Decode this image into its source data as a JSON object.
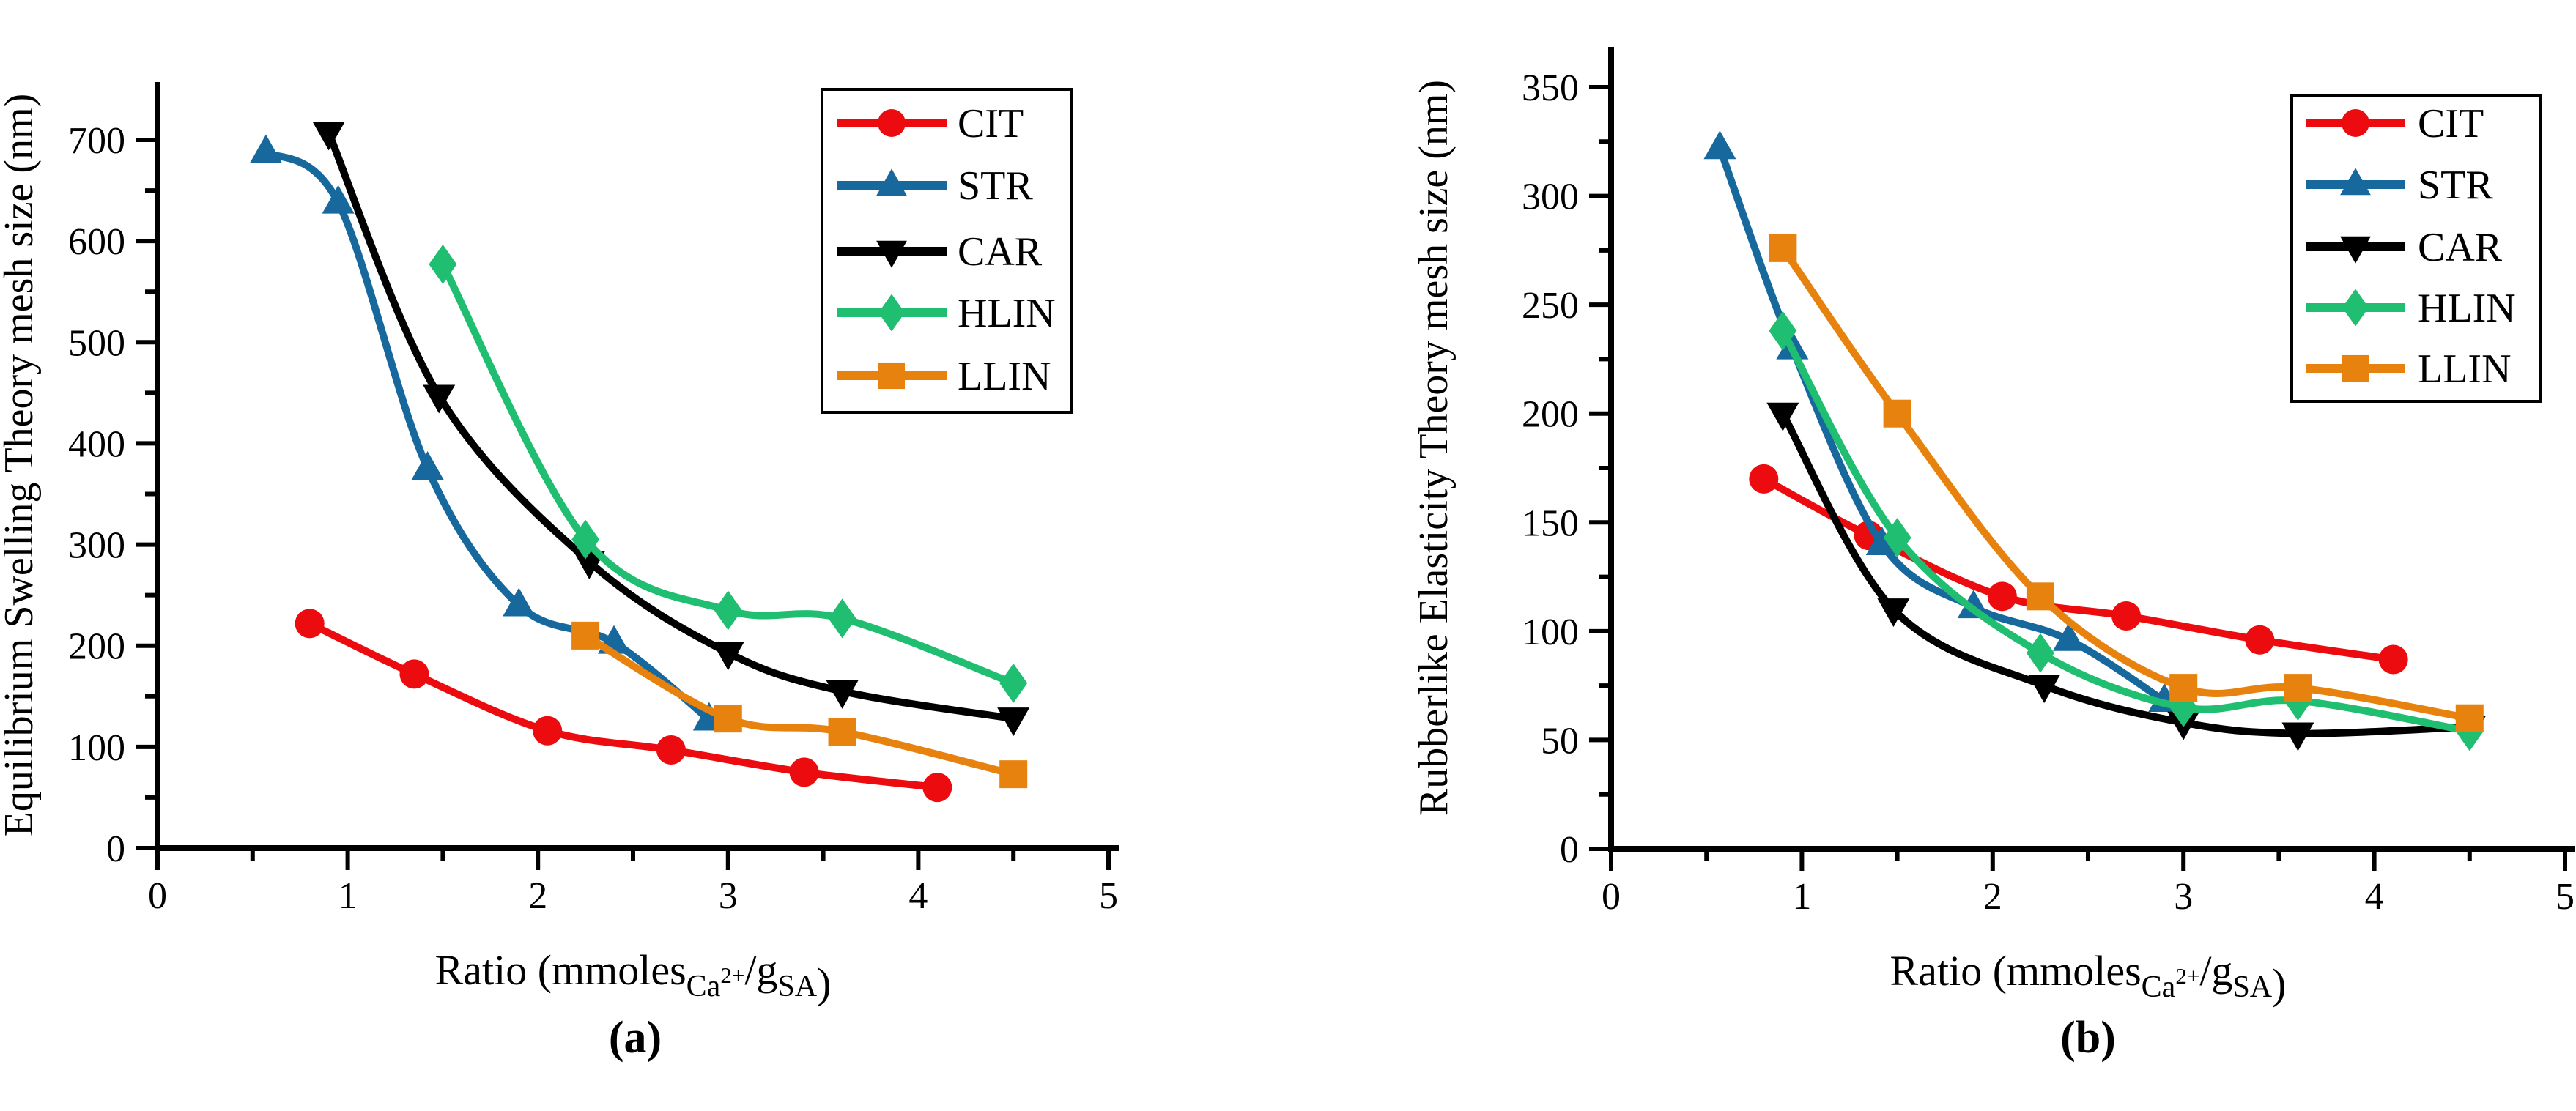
{
  "figure": {
    "caption_a": "(a)",
    "caption_b": "(b)",
    "background": "#ffffff",
    "axis_color": "#000000"
  },
  "chart_data": [
    {
      "type": "line",
      "panel": "a",
      "caption": "(a)",
      "title": "",
      "ylabel": "Equilibrium Swelling Theory mesh size (nm)",
      "xlabel": "Ratio (mmoles_Ca2+/g_SA)",
      "xlabel_rich": [
        [
          "Ratio (mmoles",
          "n"
        ],
        [
          "Ca",
          "sub"
        ],
        [
          "2+",
          "supsub"
        ],
        [
          "/g",
          "n"
        ],
        [
          "SA",
          "sub"
        ],
        [
          ")",
          "n"
        ]
      ],
      "xlim": [
        0,
        5
      ],
      "ylim": [
        0,
        700
      ],
      "x_ticks": [
        0,
        1,
        2,
        3,
        4,
        5
      ],
      "y_ticks": [
        0,
        100,
        200,
        300,
        400,
        500,
        600,
        700
      ],
      "x_major": 1,
      "x_minor": 0.5,
      "y_major": 100,
      "y_minor": 50,
      "grid": false,
      "legend_position": "top-right-inside",
      "series": [
        {
          "name": "CIT",
          "color": "#EC0B0E",
          "marker": "circle",
          "x": [
            0.8,
            1.35,
            2.05,
            2.7,
            3.4,
            4.1
          ],
          "y": [
            222,
            172,
            116,
            97,
            75,
            60
          ]
        },
        {
          "name": "STR",
          "color": "#17689D",
          "marker": "triangle-up",
          "x": [
            0.57,
            0.95,
            1.42,
            1.9,
            2.4,
            2.9
          ],
          "y": [
            688,
            638,
            375,
            240,
            203,
            127
          ]
        },
        {
          "name": "CAR",
          "color": "#000000",
          "marker": "triangle-down",
          "x": [
            0.9,
            1.48,
            2.27,
            3.0,
            3.6,
            4.5
          ],
          "y": [
            707,
            447,
            283,
            193,
            155,
            128
          ]
        },
        {
          "name": "HLIN",
          "color": "#1FBE71",
          "marker": "diamond",
          "x": [
            1.5,
            2.25,
            3.0,
            3.6,
            4.5
          ],
          "y": [
            577,
            305,
            235,
            227,
            163
          ]
        },
        {
          "name": "LLIN",
          "color": "#E8820E",
          "marker": "square",
          "x": [
            2.25,
            3.0,
            3.6,
            4.5
          ],
          "y": [
            210,
            128,
            115,
            73
          ]
        }
      ]
    },
    {
      "type": "line",
      "panel": "b",
      "caption": "(b)",
      "title": "",
      "ylabel": "Rubberlike Elasticity Theory mesh size (nm)",
      "xlabel": "Ratio (mmoles_Ca2+/g_SA)",
      "xlabel_rich": [
        [
          "Ratio (mmoles",
          "n"
        ],
        [
          "Ca",
          "sub"
        ],
        [
          "2+",
          "supsub"
        ],
        [
          "/g",
          "n"
        ],
        [
          "SA",
          "sub"
        ],
        [
          ")",
          "n"
        ]
      ],
      "xlim": [
        0,
        5
      ],
      "ylim": [
        0,
        350
      ],
      "x_ticks": [
        0,
        1,
        2,
        3,
        4,
        5
      ],
      "y_ticks": [
        0,
        50,
        100,
        150,
        200,
        250,
        300,
        350
      ],
      "x_major": 1,
      "x_minor": 0.5,
      "y_major": 50,
      "y_minor": 25,
      "grid": false,
      "legend_position": "top-right-inside",
      "series": [
        {
          "name": "CIT",
          "color": "#EC0B0E",
          "marker": "circle",
          "x": [
            0.8,
            1.35,
            2.05,
            2.7,
            3.4,
            4.1
          ],
          "y": [
            170,
            144,
            116,
            107,
            96,
            87
          ]
        },
        {
          "name": "STR",
          "color": "#17689D",
          "marker": "triangle-up",
          "x": [
            0.57,
            0.95,
            1.42,
            1.9,
            2.4,
            2.9
          ],
          "y": [
            322,
            230,
            140,
            111,
            96,
            68
          ]
        },
        {
          "name": "CAR",
          "color": "#000000",
          "marker": "triangle-down",
          "x": [
            0.9,
            1.48,
            2.27,
            3.0,
            3.6,
            4.5
          ],
          "y": [
            200,
            110,
            75,
            58,
            53,
            56
          ]
        },
        {
          "name": "HLIN",
          "color": "#1FBE71",
          "marker": "diamond",
          "x": [
            0.9,
            1.5,
            2.25,
            3.0,
            3.6,
            4.5
          ],
          "y": [
            238,
            143,
            90,
            65,
            68,
            54
          ]
        },
        {
          "name": "LLIN",
          "color": "#E8820E",
          "marker": "square",
          "x": [
            0.9,
            1.5,
            2.25,
            3.0,
            3.6,
            4.5
          ],
          "y": [
            276,
            200,
            116,
            74,
            74,
            60
          ]
        }
      ]
    }
  ]
}
